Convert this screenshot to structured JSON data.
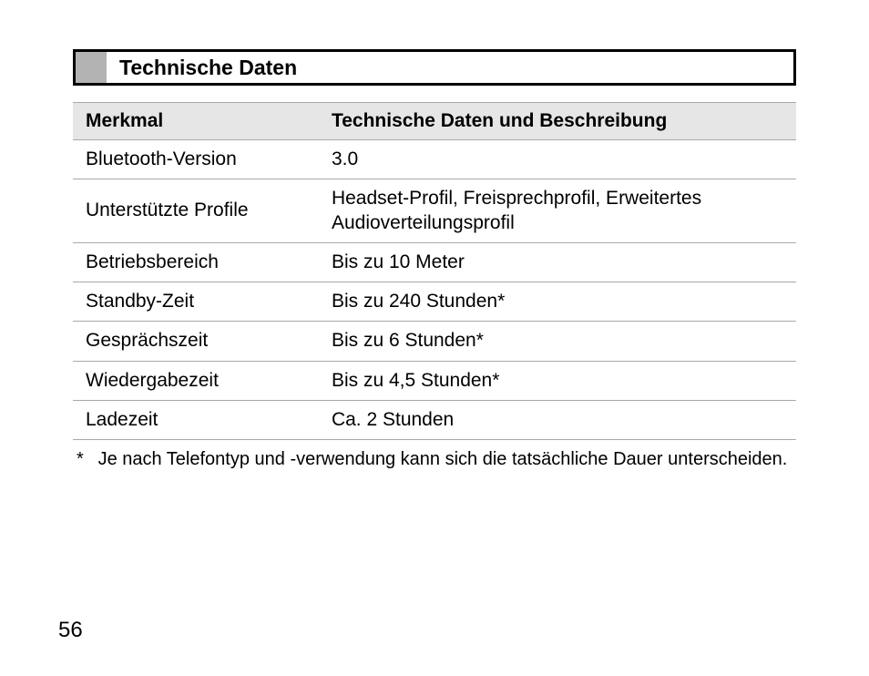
{
  "section": {
    "title": "Technische Daten"
  },
  "table": {
    "headers": {
      "feature": "Merkmal",
      "description": "Technische Daten und Beschreibung"
    },
    "rows": [
      {
        "feature": "Bluetooth-Version",
        "value": "3.0"
      },
      {
        "feature": "Unterstützte Profile",
        "value": "Headset-Profil, Freisprechprofil, Erweitertes Audioverteilungsprofil"
      },
      {
        "feature": "Betriebsbereich",
        "value": "Bis zu 10 Meter"
      },
      {
        "feature": "Standby-Zeit",
        "value": "Bis zu 240 Stunden*"
      },
      {
        "feature": "Gesprächszeit",
        "value": "Bis zu 6 Stunden*"
      },
      {
        "feature": "Wiedergabezeit",
        "value": "Bis zu 4,5 Stunden*"
      },
      {
        "feature": "Ladezeit",
        "value": "Ca. 2 Stunden"
      }
    ]
  },
  "footnote": {
    "marker": "*",
    "text": "Je nach Telefontyp und -verwendung kann sich die tatsächliche Dauer unterscheiden."
  },
  "page_number": "56"
}
